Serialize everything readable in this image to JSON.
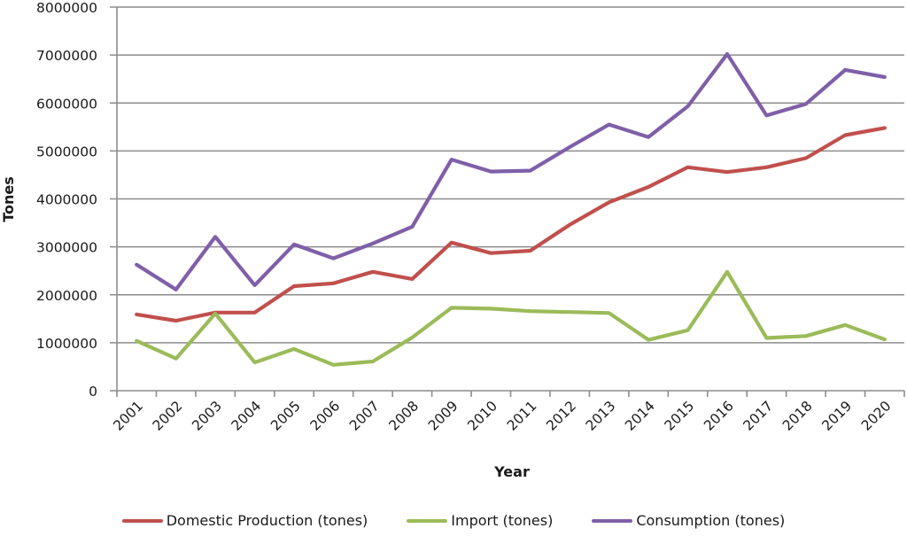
{
  "chart_data": {
    "type": "line",
    "title": "",
    "xlabel": "Year",
    "ylabel": "Tones",
    "ylim": [
      0,
      8000000
    ],
    "yticks": [
      0,
      1000000,
      2000000,
      3000000,
      4000000,
      5000000,
      6000000,
      7000000,
      8000000
    ],
    "ytick_labels": [
      "0",
      "1000000",
      "2000000",
      "3000000",
      "4000000",
      "5000000",
      "6000000",
      "7000000",
      "8000000"
    ],
    "grid": true,
    "legend_position": "bottom",
    "categories": [
      "2001",
      "2002",
      "2003",
      "2004",
      "2005",
      "2006",
      "2007",
      "2008",
      "2009",
      "2010",
      "2011",
      "2012",
      "2013",
      "2014",
      "2015",
      "2016",
      "2017",
      "2018",
      "2019",
      "2020"
    ],
    "series": [
      {
        "name": "Domestic Production (tones)",
        "color": "#C0504D",
        "values": [
          1590000,
          1460000,
          1630000,
          1630000,
          2180000,
          2240000,
          2480000,
          2330000,
          3090000,
          2870000,
          2920000,
          3460000,
          3930000,
          4250000,
          4660000,
          4560000,
          4660000,
          4850000,
          5330000,
          5480000
        ]
      },
      {
        "name": "Import (tones)",
        "color": "#9BBB59",
        "values": [
          1040000,
          670000,
          1610000,
          590000,
          870000,
          540000,
          610000,
          1110000,
          1730000,
          1710000,
          1660000,
          1640000,
          1620000,
          1060000,
          1260000,
          2480000,
          1100000,
          1140000,
          1370000,
          1070000
        ]
      },
      {
        "name": "Consumption (tones)",
        "color": "#7F5FA8",
        "values": [
          2630000,
          2110000,
          3210000,
          2200000,
          3050000,
          2760000,
          3070000,
          3420000,
          4820000,
          4570000,
          4590000,
          5080000,
          5550000,
          5290000,
          5930000,
          7020000,
          5740000,
          5980000,
          6690000,
          6540000
        ]
      }
    ]
  }
}
